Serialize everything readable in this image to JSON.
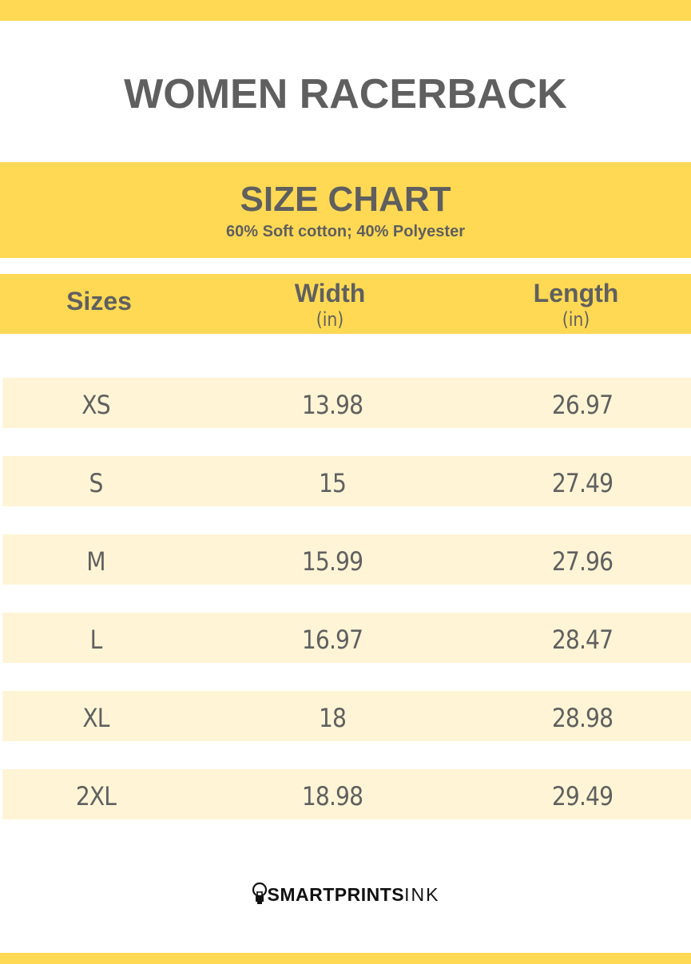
{
  "title": "WOMEN RACERBACK",
  "band": {
    "heading": "SIZE CHART",
    "material": "60% Soft cotton; 40% Polyester"
  },
  "columns": [
    {
      "label": "Sizes",
      "unit": ""
    },
    {
      "label": "Width",
      "unit": "(in)"
    },
    {
      "label": "Length",
      "unit": "(in)"
    }
  ],
  "rows": [
    {
      "size": "XS",
      "width": "13.98",
      "length": "26.97"
    },
    {
      "size": "S",
      "width": "15",
      "length": "27.49"
    },
    {
      "size": "M",
      "width": "15.99",
      "length": "27.96"
    },
    {
      "size": "L",
      "width": "16.97",
      "length": "28.47"
    },
    {
      "size": "XL",
      "width": "18",
      "length": "28.98"
    },
    {
      "size": "2XL",
      "width": "18.98",
      "length": "29.49"
    }
  ],
  "logo": {
    "bold": "SMARTPRINTS",
    "light": "INK",
    "icon": "lightbulb-icon"
  },
  "colors": {
    "accent": "#FFD954",
    "row": "#FFF5D6",
    "text": "#606060"
  }
}
